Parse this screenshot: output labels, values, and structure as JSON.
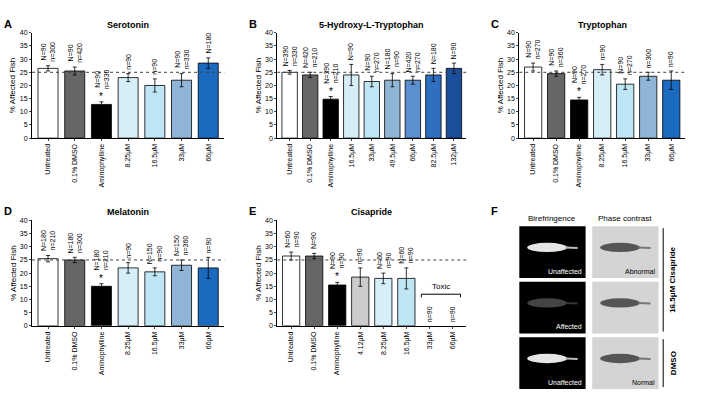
{
  "chart_data": [
    {
      "type": "bar",
      "label": "A",
      "title": "Serotonin",
      "y_label": "% Affected Fish",
      "categories": [
        "Untreated",
        "0.1% DMSO",
        "Aminophylline",
        "8.25μM",
        "16.5μM",
        "33μM",
        "66μM"
      ],
      "values": [
        26.5,
        25.5,
        12.8,
        23,
        20,
        22,
        28.5
      ],
      "errors": [
        1,
        1.5,
        1,
        1.5,
        2.5,
        2.5,
        2
      ],
      "colors": [
        "#ffffff",
        "#666666",
        "#000000",
        "#d6eef8",
        "#bfe6f5",
        "#8fb6d6",
        "#1a6bbf"
      ],
      "n_labels": [
        "N=90 n=300",
        "N=90 n=420",
        "N=90 n=330",
        "n=90",
        "n=90",
        "N=90 n=330",
        "N=180"
      ],
      "annotations": [
        {
          "text": "*",
          "category": "Aminophylline"
        }
      ],
      "threshold": 25,
      "ylim": [
        0,
        40
      ],
      "yticks": [
        0,
        5,
        10,
        15,
        20,
        25,
        30,
        35,
        40
      ],
      "grid": false
    },
    {
      "type": "bar",
      "label": "B",
      "title": "5-Hydroxy-L-Tryptophan",
      "y_label": "% Affected Fish",
      "categories": [
        "Untreated",
        "0.1% DMSO",
        "Aminophylline",
        "16.5μM",
        "33μM",
        "49.5μM",
        "66μM",
        "82.5μM",
        "132μM"
      ],
      "values": [
        25,
        24,
        14.8,
        24,
        21.5,
        22,
        22,
        24,
        26.5
      ],
      "errors": [
        0.7,
        1,
        1,
        4,
        2,
        2.5,
        1.5,
        2.5,
        2
      ],
      "colors": [
        "#ffffff",
        "#666666",
        "#000000",
        "#d6eef8",
        "#bfe6f5",
        "#8fb6d6",
        "#5b8fd0",
        "#2e6fc0",
        "#1b4f9c"
      ],
      "n_labels": [
        "N=390 n=330",
        "N=420 n=210",
        "N=390 n=210",
        "N=90",
        "N=90 n=270",
        "N=180 n=90",
        "N=420 n=270",
        "N=180",
        "N=90"
      ],
      "annotations": [
        {
          "text": "*",
          "category": "Aminophylline"
        }
      ],
      "threshold": 25,
      "ylim": [
        0,
        40
      ],
      "yticks": [
        0,
        5,
        10,
        15,
        20,
        25,
        30,
        35,
        40
      ],
      "grid": false
    },
    {
      "type": "bar",
      "label": "C",
      "title": "Tryptophan",
      "y_label": "% Affected Fish",
      "categories": [
        "Untreated",
        "0.1% DMSO",
        "Aminophylline",
        "8.25μM",
        "16.5μM",
        "33μM",
        "66μM"
      ],
      "values": [
        27,
        24.5,
        14.5,
        26,
        20.5,
        23.5,
        22
      ],
      "errors": [
        1.5,
        1,
        1,
        2,
        2,
        1.5,
        3.5
      ],
      "colors": [
        "#ffffff",
        "#666666",
        "#000000",
        "#d6eef8",
        "#bfe6f5",
        "#8fb6d6",
        "#1a6bbf"
      ],
      "n_labels": [
        "N=90 n=270",
        "N=90 n=360",
        "N=90 n=270",
        "n=90",
        "N=90 n=270",
        "n=300",
        "n=90"
      ],
      "annotations": [
        {
          "text": "*",
          "category": "Aminophylline"
        }
      ],
      "threshold": 25,
      "ylim": [
        0,
        40
      ],
      "yticks": [
        0,
        5,
        10,
        15,
        20,
        25,
        30,
        35,
        40
      ],
      "grid": false
    },
    {
      "type": "bar",
      "label": "D",
      "title": "Melatonin",
      "y_label": "% Affected Fish",
      "categories": [
        "Untreated",
        "0.1% DMSO",
        "Aminophylline",
        "8.25μM",
        "16.5μM",
        "33μM",
        "66μM"
      ],
      "values": [
        25.5,
        25,
        15,
        22,
        20.5,
        23,
        22
      ],
      "errors": [
        1.2,
        1,
        1,
        2,
        1.5,
        2,
        4
      ],
      "colors": [
        "#ffffff",
        "#666666",
        "#000000",
        "#d6eef8",
        "#bfe6f5",
        "#8fb6d6",
        "#1a6bbf"
      ],
      "n_labels": [
        "N=180 n=210",
        "N=180 n=300",
        "N=180 n=210",
        "n=90",
        "N=150 n=90",
        "N=150 n=360",
        "n=90"
      ],
      "annotations": [
        {
          "text": "*",
          "category": "Aminophylline"
        }
      ],
      "threshold": 25,
      "ylim": [
        0,
        40
      ],
      "yticks": [
        0,
        5,
        10,
        15,
        20,
        25,
        30,
        35,
        40
      ],
      "grid": false
    },
    {
      "type": "bar",
      "label": "E",
      "title": "Cisapride",
      "y_label": "% Affected Fish",
      "categories": [
        "Untreated",
        "0.1% DMSO",
        "Aminophylline",
        "4.12μM",
        "8.25μM",
        "16.5μM",
        "33μM",
        "66μM"
      ],
      "values": [
        26.5,
        26.5,
        15.5,
        18.5,
        18,
        18,
        null,
        null
      ],
      "errors": [
        1.5,
        1,
        1,
        3.5,
        2,
        4,
        null,
        null
      ],
      "colors": [
        "#ffffff",
        "#666666",
        "#000000",
        "#cccccc",
        "#d6eef8",
        "#bfe6f5",
        "#8fb6d6",
        "#1a6bbf"
      ],
      "n_labels": [
        "N=60 n=90",
        "N=90",
        "N=90 n=90",
        "n=90",
        "N=60 n=90",
        "N=60 n=90",
        "n=90",
        "n=90"
      ],
      "annotations": [
        {
          "text": "*",
          "category": "Aminophylline"
        },
        {
          "text": "Toxic",
          "categories": [
            "33μM",
            "66μM"
          ]
        }
      ],
      "threshold": 25,
      "ylim": [
        0,
        40
      ],
      "yticks": [
        0,
        5,
        10,
        15,
        20,
        25,
        30,
        35,
        40
      ],
      "grid": false
    }
  ],
  "panel_f": {
    "label": "F",
    "columns": [
      "Birefringence",
      "Phase contrast"
    ],
    "groups": [
      {
        "label": "16.5μM Cisapride",
        "rows": [
          [
            "Unaffected",
            "Abnormal"
          ],
          [
            "Affected",
            null
          ]
        ]
      },
      {
        "label": "DMSO",
        "rows": [
          [
            "Unaffected",
            "Normal"
          ]
        ]
      }
    ]
  }
}
